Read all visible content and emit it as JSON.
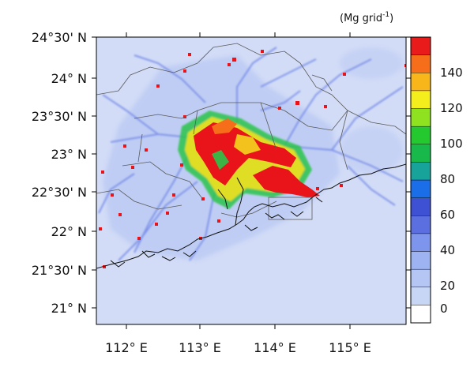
{
  "map": {
    "unit_text": "(Mg grid",
    "unit_exponent": "-1",
    "unit_close": ")",
    "lat_labels": [
      "24°30' N",
      "24° N",
      "23°30' N",
      "23° N",
      "22°30' N",
      "22° N",
      "21°30' N",
      "21° N"
    ],
    "lon_labels": [
      "112° E",
      "113° E",
      "114° E",
      "115° E"
    ],
    "background_color": "#d2dcf7",
    "hotspot_color": "#e8141a"
  },
  "colorbar": {
    "labels": [
      "140",
      "120",
      "100",
      "80",
      "60",
      "40",
      "20",
      "0"
    ],
    "colors": [
      "#ffffff",
      "#c8d6f6",
      "#b5c6f4",
      "#9eb4f2",
      "#7e95ee",
      "#5b6fe0",
      "#3e50d4",
      "#1a6fe8",
      "#17a39a",
      "#19b84a",
      "#23c92e",
      "#8fe21f",
      "#f5ee1d",
      "#f8b61b",
      "#f66e1a",
      "#ea1b1b"
    ]
  }
}
